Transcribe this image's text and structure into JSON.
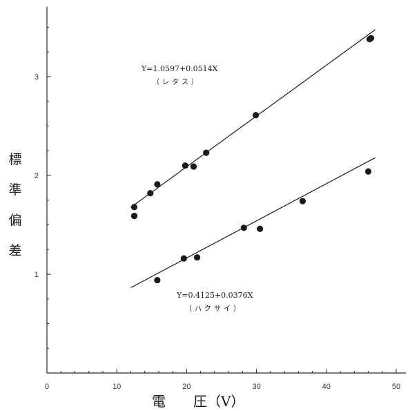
{
  "chart_data": {
    "type": "scatter",
    "title": "",
    "xlabel": "電　　圧（V）",
    "ylabel": "標準偏差",
    "xlim": [
      0,
      50
    ],
    "ylim": [
      0,
      3.6
    ],
    "x_ticks": [
      "0",
      "10",
      "20",
      "30",
      "40",
      "50"
    ],
    "y_ticks": [
      "1",
      "2",
      "3"
    ],
    "grid": false,
    "series": [
      {
        "name": "レタス",
        "equation": "Y=1.0597+0.0514X",
        "label": "（レタス）",
        "intercept": 1.0597,
        "slope": 0.0514,
        "fit_range": [
          12,
          47
        ],
        "points": [
          {
            "x": 12.5,
            "y": 1.68
          },
          {
            "x": 12.5,
            "y": 1.59
          },
          {
            "x": 14.8,
            "y": 1.82
          },
          {
            "x": 15.8,
            "y": 1.91
          },
          {
            "x": 19.8,
            "y": 2.1
          },
          {
            "x": 21.0,
            "y": 2.09
          },
          {
            "x": 22.8,
            "y": 2.23
          },
          {
            "x": 29.9,
            "y": 2.61
          },
          {
            "x": 46.2,
            "y": 3.38
          },
          {
            "x": 46.4,
            "y": 3.39
          }
        ]
      },
      {
        "name": "ハクサイ",
        "equation": "Y=0.4125+0.0376X",
        "label": "（ハクサイ）",
        "intercept": 0.4125,
        "slope": 0.0376,
        "fit_range": [
          12,
          47
        ],
        "points": [
          {
            "x": 15.8,
            "y": 0.94
          },
          {
            "x": 19.6,
            "y": 1.16
          },
          {
            "x": 21.5,
            "y": 1.17
          },
          {
            "x": 28.2,
            "y": 1.47
          },
          {
            "x": 30.5,
            "y": 1.46
          },
          {
            "x": 36.6,
            "y": 1.74
          },
          {
            "x": 46.0,
            "y": 2.04
          }
        ]
      }
    ]
  },
  "colors": {
    "ink": "#1a1a1a",
    "axis": "#2a2a2a",
    "background": "#ffffff"
  }
}
